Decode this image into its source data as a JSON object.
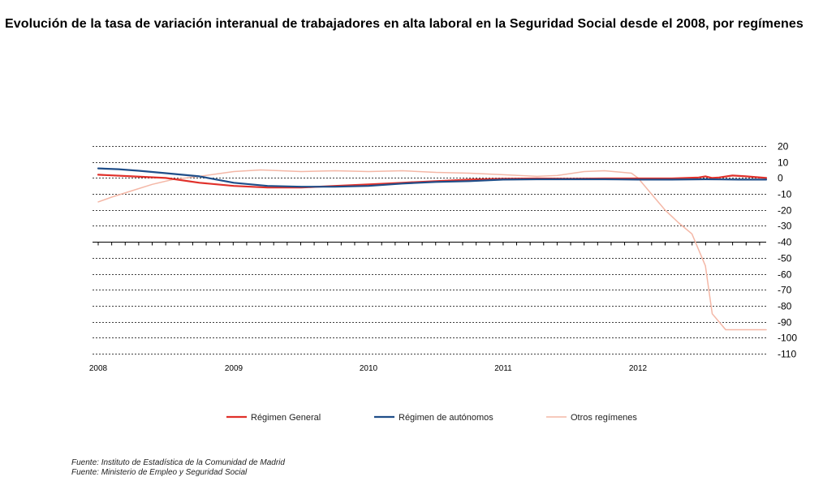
{
  "title": "Evolución de la tasa de variación interanual de trabajadores en alta laboral en la Seguridad Social desde el 2008, por regímenes",
  "sources": [
    "Fuente: Instituto de Estadística de la Comunidad de Madrid",
    "Fuente: Ministerio de Empleo y Seguridad Social"
  ],
  "chart_data": {
    "type": "line",
    "title": "Evolución de la tasa de variación interanual de trabajadores en alta laboral en la Seguridad Social desde el 2008, por regímenes",
    "xlabel": "",
    "ylabel": "",
    "xlim": [
      2008.0,
      2012.95
    ],
    "ylim": [
      -110,
      20
    ],
    "y_ticks": [
      20,
      10,
      0,
      -10,
      -20,
      -30,
      -40,
      -50,
      -60,
      -70,
      -80,
      -90,
      -100,
      -110
    ],
    "x_tick_labels": [
      "2008",
      "2009",
      "2010",
      "2011",
      "2012"
    ],
    "y_axis_position": "right",
    "grid": "horizontal dashed",
    "legend_position": "bottom",
    "series": [
      {
        "name": "Régimen General",
        "color": "#e0302a",
        "style": "solid",
        "x": [
          2008.0,
          2008.25,
          2008.5,
          2008.75,
          2009.0,
          2009.25,
          2009.5,
          2009.75,
          2010.0,
          2010.25,
          2010.5,
          2010.75,
          2011.0,
          2011.25,
          2011.5,
          2011.75,
          2012.0,
          2012.25,
          2012.45,
          2012.5,
          2012.55,
          2012.6,
          2012.7,
          2012.8,
          2012.95
        ],
        "y": [
          2,
          1,
          0,
          -3,
          -5,
          -6,
          -6,
          -5,
          -4,
          -3,
          -2,
          -1,
          -0.5,
          -0.3,
          -0.5,
          -0.3,
          -0.3,
          -0.3,
          0.3,
          1,
          0,
          0.3,
          1.5,
          1,
          0
        ]
      },
      {
        "name": "Régimen de autónomos",
        "color": "#1f4e89",
        "style": "solid",
        "x": [
          2008.0,
          2008.15,
          2008.3,
          2008.5,
          2008.75,
          2009.0,
          2009.25,
          2009.5,
          2009.75,
          2010.0,
          2010.25,
          2010.5,
          2010.75,
          2011.0,
          2011.25,
          2011.5,
          2011.75,
          2012.0,
          2012.25,
          2012.5,
          2012.75,
          2012.95
        ],
        "y": [
          6,
          5.5,
          4.5,
          3,
          1,
          -3,
          -5,
          -5.5,
          -5.5,
          -5,
          -3.5,
          -2.5,
          -2,
          -1,
          -0.8,
          -0.8,
          -0.8,
          -1,
          -1,
          -0.8,
          -1,
          -1
        ]
      },
      {
        "name": "Otros regímenes",
        "color": "#f4b7a6",
        "style": "solid",
        "x": [
          2008.0,
          2008.1,
          2008.25,
          2008.4,
          2008.55,
          2008.75,
          2009.0,
          2009.2,
          2009.5,
          2009.75,
          2010.0,
          2010.25,
          2010.5,
          2010.75,
          2011.0,
          2011.25,
          2011.4,
          2011.6,
          2011.75,
          2011.95,
          2012.0,
          2012.1,
          2012.2,
          2012.3,
          2012.4,
          2012.45,
          2012.5,
          2012.55,
          2012.6,
          2012.65,
          2012.75,
          2012.95
        ],
        "y": [
          -15,
          -12,
          -8,
          -4,
          -1,
          1,
          4,
          5,
          4,
          4.5,
          4,
          4.5,
          3.5,
          3,
          2,
          1,
          1.5,
          4,
          4.5,
          3,
          0,
          -10,
          -20,
          -28,
          -35,
          -45,
          -55,
          -85,
          -90,
          -95,
          -95,
          -95
        ]
      }
    ]
  }
}
